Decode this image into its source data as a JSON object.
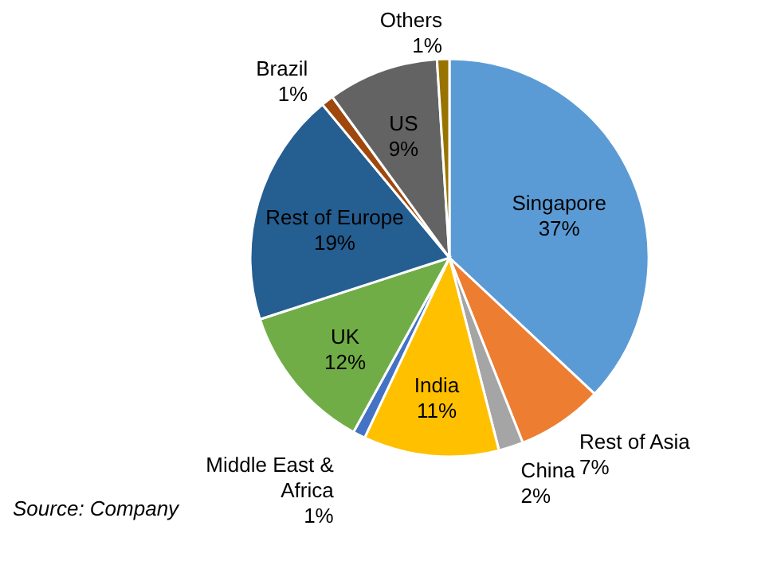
{
  "chart_data": {
    "type": "pie",
    "categories": [
      "Singapore",
      "Rest of Asia",
      "China",
      "India",
      "Middle East & Africa",
      "UK",
      "Rest of Europe",
      "Brazil",
      "US",
      "Others"
    ],
    "values": [
      37,
      7,
      2,
      11,
      1,
      12,
      19,
      1,
      9,
      1
    ],
    "value_labels": [
      "37%",
      "7%",
      "2%",
      "11%",
      "1%",
      "12%",
      "19%",
      "1%",
      "9%",
      "1%"
    ],
    "colors": [
      "#5b9bd5",
      "#ed7d31",
      "#a5a5a5",
      "#ffc000",
      "#4472c4",
      "#70ad47",
      "#255e91",
      "#9e480e",
      "#636363",
      "#997300"
    ],
    "annotations": [
      "Source: Company"
    ]
  }
}
